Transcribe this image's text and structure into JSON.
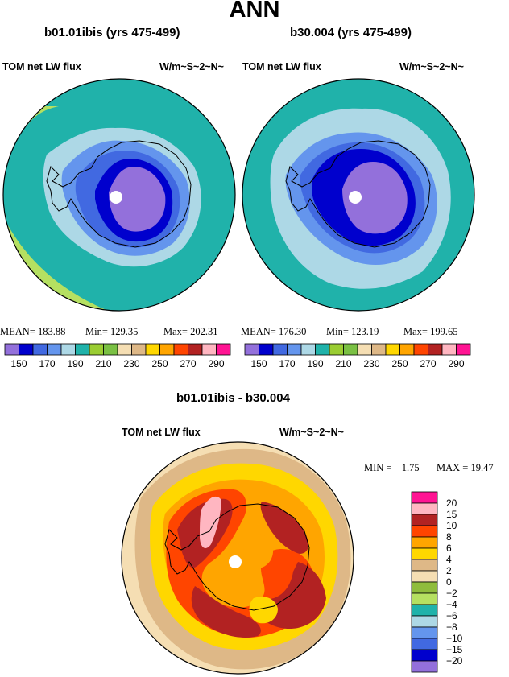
{
  "title": "ANN",
  "panels": [
    {
      "case": "b01.01ibis (yrs 475-499)",
      "variable": "TOM net LW flux",
      "units": "W/m~S~2~N~",
      "mean_label": "MEAN=",
      "mean": "183.88",
      "min_label": "Min=",
      "min": "129.35",
      "max_label": "Max=",
      "max": "202.31"
    },
    {
      "case": "b30.004 (yrs 475-499)",
      "variable": "TOM net LW flux",
      "units": "W/m~S~2~N~",
      "mean_label": "MEAN=",
      "mean": "176.30",
      "min_label": "Min=",
      "min": "123.19",
      "max_label": "Max=",
      "max": "199.65"
    }
  ],
  "colorbar": {
    "ticks": [
      "150",
      "170",
      "190",
      "210",
      "230",
      "250",
      "270",
      "290"
    ],
    "colors": [
      "#9370db",
      "#0000cd",
      "#4169e1",
      "#6495ed",
      "#add8e6",
      "#20b2aa",
      "#9acd32",
      "#7ac043",
      "#f5deb3",
      "#deb887",
      "#ffd700",
      "#ffa500",
      "#ff4500",
      "#b22222",
      "#ffb6c1",
      "#ff1493"
    ]
  },
  "diff": {
    "title": "b01.01ibis - b30.004",
    "variable": "TOM net LW flux",
    "units": "W/m~S~2~N~",
    "min_label": "MIN =",
    "min": "1.75",
    "max_label": "MAX =",
    "max": "19.47",
    "legend": [
      {
        "label": "20",
        "color": "#ff1493"
      },
      {
        "label": "15",
        "color": "#ffb6c1"
      },
      {
        "label": "10",
        "color": "#b22222"
      },
      {
        "label": "8",
        "color": "#ff4500"
      },
      {
        "label": "6",
        "color": "#ffa500"
      },
      {
        "label": "4",
        "color": "#ffd700"
      },
      {
        "label": "2",
        "color": "#deb887"
      },
      {
        "label": "0",
        "color": "#f5deb3"
      },
      {
        "label": "−2",
        "color": "#8fbc3c"
      },
      {
        "label": "−4",
        "color": "#b5e061"
      },
      {
        "label": "−6",
        "color": "#20b2aa"
      },
      {
        "label": "−8",
        "color": "#add8e6"
      },
      {
        "label": "−10",
        "color": "#6495ed"
      },
      {
        "label": "−15",
        "color": "#4169e1"
      },
      {
        "label": "−20",
        "color": "#0000cd"
      },
      {
        "label": "",
        "color": "#9370db"
      }
    ]
  }
}
